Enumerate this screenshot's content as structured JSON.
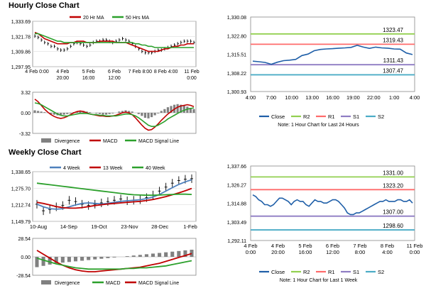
{
  "sections": {
    "hourly_title": "Hourly Close Chart",
    "weekly_title": "Weekly Close Chart"
  },
  "colors": {
    "ma_short": "#c00000",
    "ma_long": "#2ca02c",
    "ma_4": "#4f81bd",
    "close": "#1f5fa8",
    "r2": "#92d050",
    "r1": "#ff6b6b",
    "s1": "#8e7cc3",
    "s2": "#4bacc6",
    "divergence": "#808080",
    "macd": "#c00000",
    "signal": "#2ca02c"
  },
  "chart_data": [
    {
      "id": "hourly_price",
      "type": "line",
      "legend": [
        "20 Hr MA",
        "50 Hrs MA"
      ],
      "yticks": [
        "1,333.69",
        "1,321.78",
        "1,309.86",
        "1,297.95"
      ],
      "yrange": [
        1297.95,
        1333.69
      ],
      "xticks": [
        {
          "l1": "4 Feb 0:00",
          "l2": ""
        },
        {
          "l1": "4 Feb",
          "l2": "20:00"
        },
        {
          "l1": "5 Feb",
          "l2": "16:00"
        },
        {
          "l1": "6 Feb",
          "l2": "12:00"
        },
        {
          "l1": "7 Feb 8:00",
          "l2": ""
        },
        {
          "l1": "8 Feb 4:00",
          "l2": ""
        },
        {
          "l1": "11 Feb",
          "l2": "0:00"
        }
      ],
      "bars": [
        1322,
        1321,
        1319,
        1317,
        1316,
        1314,
        1314,
        1312,
        1311,
        1311,
        1312,
        1314,
        1316,
        1317,
        1316,
        1315,
        1314,
        1315,
        1317,
        1318,
        1318,
        1319,
        1319,
        1318,
        1317,
        1318,
        1319,
        1320,
        1319,
        1318,
        1316,
        1314,
        1312,
        1310,
        1309,
        1309,
        1309,
        1310,
        1311,
        1311,
        1312,
        1313,
        1314,
        1315,
        1316,
        1317,
        1318,
        1318,
        1318,
        1317
      ],
      "ma20": [
        1325,
        1324,
        1322,
        1320,
        1319,
        1318,
        1317,
        1316,
        1316,
        1316,
        1316,
        1317,
        1317,
        1318,
        1318,
        1318,
        1317,
        1317,
        1317,
        1317,
        1318,
        1318,
        1318,
        1318,
        1318,
        1317,
        1317,
        1317,
        1317,
        1316,
        1315,
        1314,
        1313,
        1312,
        1311,
        1310,
        1310,
        1310,
        1310,
        1311,
        1312,
        1312,
        1313,
        1314,
        1314,
        1315,
        1315,
        1316,
        1316,
        1316
      ],
      "ma50": [
        1324,
        1324,
        1323,
        1322,
        1321,
        1320,
        1319,
        1318,
        1318,
        1317,
        1317,
        1317,
        1317,
        1317,
        1317,
        1317,
        1317,
        1317,
        1317,
        1317,
        1317,
        1317,
        1317,
        1317,
        1317,
        1317,
        1317,
        1317,
        1317,
        1317,
        1317,
        1316,
        1316,
        1315,
        1315,
        1314,
        1314,
        1313,
        1313,
        1313,
        1313,
        1313,
        1313,
        1313,
        1313,
        1313,
        1313,
        1313,
        1313,
        1313
      ]
    },
    {
      "id": "hourly_macd",
      "type": "bar",
      "legend": [
        "Divergence",
        "MACD",
        "MACD Signal Line"
      ],
      "yticks": [
        "3.32",
        "0.00",
        "-3.32"
      ],
      "yrange": [
        -3.32,
        3.32
      ],
      "divergence": [
        0.4,
        0.3,
        0.2,
        0.1,
        0.0,
        -0.2,
        -0.3,
        -0.4,
        -0.4,
        -0.3,
        -0.2,
        -0.1,
        0.1,
        0.2,
        0.3,
        0.3,
        0.2,
        0.1,
        0.0,
        -0.1,
        -0.2,
        -0.3,
        -0.3,
        -0.2,
        -0.1,
        0.0,
        0.2,
        0.3,
        0.4,
        0.3,
        0.2,
        0.0,
        -0.2,
        -0.5,
        -0.8,
        -0.9,
        -0.7,
        -0.4,
        -0.1,
        0.3,
        0.6,
        0.9,
        1.1,
        1.3,
        1.4,
        1.3,
        1.2,
        1.0,
        0.8,
        0.6
      ],
      "macd": [
        2.2,
        1.8,
        1.2,
        0.6,
        0.1,
        -0.3,
        -0.6,
        -0.8,
        -0.9,
        -0.8,
        -0.6,
        -0.3,
        0.0,
        0.2,
        0.3,
        0.2,
        0.0,
        -0.2,
        -0.3,
        -0.4,
        -0.5,
        -0.5,
        -0.6,
        -0.6,
        -0.5,
        -0.4,
        -0.2,
        0.0,
        0.1,
        0.0,
        -0.3,
        -0.8,
        -1.4,
        -2.0,
        -2.5,
        -2.8,
        -2.7,
        -2.3,
        -1.8,
        -1.2,
        -0.7,
        -0.2,
        0.2,
        0.6,
        0.9,
        1.1,
        1.2,
        1.3,
        1.2,
        1.0
      ],
      "signal": [
        1.6,
        1.5,
        1.3,
        1.0,
        0.7,
        0.4,
        0.1,
        -0.2,
        -0.4,
        -0.5,
        -0.5,
        -0.4,
        -0.3,
        -0.2,
        -0.1,
        -0.1,
        -0.1,
        -0.2,
        -0.3,
        -0.3,
        -0.4,
        -0.4,
        -0.5,
        -0.5,
        -0.5,
        -0.5,
        -0.4,
        -0.3,
        -0.2,
        -0.2,
        -0.3,
        -0.5,
        -0.8,
        -1.2,
        -1.6,
        -2.0,
        -2.2,
        -2.2,
        -2.0,
        -1.7,
        -1.4,
        -1.0,
        -0.7,
        -0.4,
        -0.1,
        0.2,
        0.4,
        0.6,
        0.7,
        0.8
      ]
    },
    {
      "id": "hourly_pivot",
      "type": "line",
      "yticks": [
        "1,330.08",
        "1,322.80",
        "1,315.51",
        "1,308.22",
        "1,300.93"
      ],
      "yrange": [
        1300.93,
        1330.08
      ],
      "xticks": [
        "4:00",
        "7:00",
        "10:00",
        "13:00",
        "16:00",
        "19:00",
        "22:00",
        "1:00",
        "4:00"
      ],
      "close": [
        1312.8,
        1312.6,
        1312.3,
        1311.6,
        1312.4,
        1313.0,
        1313.2,
        1313.5,
        1315.0,
        1315.6,
        1316.9,
        1317.4,
        1317.6,
        1317.7,
        1317.9,
        1318.0,
        1318.2,
        1319.0,
        1318.3,
        1317.8,
        1318.3,
        1318.0,
        1317.9,
        1317.6,
        1317.5,
        1316.0,
        1315.4
      ],
      "levels": [
        {
          "key": "r2",
          "value": 1323.47,
          "label": "1323.47"
        },
        {
          "key": "r1",
          "value": 1319.43,
          "label": "1319.43"
        },
        {
          "key": "s1",
          "value": 1311.43,
          "label": "1311.43"
        },
        {
          "key": "s2",
          "value": 1307.47,
          "label": "1307.47"
        }
      ],
      "legend": [
        "Close",
        "R2",
        "R1",
        "S1",
        "S2"
      ],
      "note": "Note: 1 Hour Chart for Last 24 Hours"
    },
    {
      "id": "weekly_price",
      "type": "line",
      "legend": [
        "4 Week",
        "13 Week",
        "40 Week"
      ],
      "yticks": [
        "1,338.65",
        "1,275.70",
        "1,212.74",
        "1,149.79"
      ],
      "yrange": [
        1149.79,
        1338.65
      ],
      "xticks": [
        "10-Aug",
        "14-Sep",
        "19-Oct",
        "23-Nov",
        "28-Dec",
        "1-Feb"
      ],
      "candles": [
        1215,
        1190,
        1195,
        1205,
        1210,
        1230,
        1225,
        1215,
        1210,
        1215,
        1220,
        1225,
        1230,
        1235,
        1228,
        1230,
        1232,
        1240,
        1250,
        1265,
        1280,
        1295,
        1305,
        1310,
        1312
      ],
      "ma4": [
        1215,
        1205,
        1198,
        1196,
        1198,
        1205,
        1212,
        1218,
        1220,
        1218,
        1216,
        1218,
        1222,
        1226,
        1228,
        1230,
        1232,
        1236,
        1242,
        1252,
        1265,
        1278,
        1290,
        1300,
        1308
      ],
      "ma13": [
        1222,
        1218,
        1212,
        1206,
        1202,
        1200,
        1200,
        1202,
        1206,
        1210,
        1213,
        1216,
        1218,
        1220,
        1222,
        1224,
        1226,
        1229,
        1233,
        1238,
        1244,
        1251,
        1258,
        1266,
        1275
      ],
      "ma40": [
        1295,
        1292,
        1289,
        1286,
        1283,
        1280,
        1277,
        1274,
        1271,
        1268,
        1265,
        1262,
        1259,
        1256,
        1253,
        1251,
        1250,
        1249,
        1249,
        1250,
        1251,
        1252,
        1253,
        1253,
        1252
      ]
    },
    {
      "id": "weekly_macd",
      "type": "bar",
      "legend": [
        "Divergence",
        "MACD",
        "MACD Signal Line"
      ],
      "yticks": [
        "28.54",
        "0.00",
        "-28.54"
      ],
      "yrange": [
        -28.54,
        28.54
      ],
      "divergence": [
        -16,
        -14,
        -12,
        -10,
        -9,
        -8,
        -7,
        -6,
        -5,
        -4,
        -3,
        -2,
        -1,
        0,
        1,
        2,
        3,
        4,
        5,
        6,
        7,
        8,
        9,
        10,
        11
      ],
      "macd": [
        10,
        4,
        -2,
        -8,
        -13,
        -17,
        -20,
        -22,
        -23,
        -23,
        -22,
        -21,
        -20,
        -19,
        -18,
        -17,
        -16,
        -14,
        -12,
        -10,
        -7,
        -4,
        -1,
        2,
        5
      ],
      "signal": [
        -2,
        -5,
        -8,
        -11,
        -13,
        -15,
        -17,
        -18,
        -19,
        -19,
        -19,
        -19,
        -19,
        -19,
        -18,
        -18,
        -17,
        -17,
        -16,
        -15,
        -14,
        -12,
        -10,
        -8,
        -6
      ]
    },
    {
      "id": "weekly_pivot",
      "type": "line",
      "yticks": [
        "1,337.66",
        "1,326.27",
        "1,314.88",
        "1,303.49",
        "1,292.11"
      ],
      "yrange": [
        1292.11,
        1337.66
      ],
      "xticks": [
        {
          "l1": "4 Feb",
          "l2": "0:00"
        },
        {
          "l1": "4 Feb",
          "l2": "20:00"
        },
        {
          "l1": "5 Feb",
          "l2": "16:00"
        },
        {
          "l1": "6 Feb",
          "l2": "12:00"
        },
        {
          "l1": "7 Feb",
          "l2": "8:00"
        },
        {
          "l1": "8 Feb",
          "l2": "4:00"
        },
        {
          "l1": "11 Feb",
          "l2": "0:00"
        }
      ],
      "close": [
        1320,
        1319,
        1317,
        1316,
        1314,
        1314,
        1313,
        1314,
        1316,
        1318,
        1318,
        1317,
        1316,
        1314,
        1316,
        1317,
        1316,
        1316,
        1314,
        1313,
        1315,
        1317,
        1316,
        1316,
        1315,
        1315,
        1316,
        1317,
        1317,
        1316,
        1314,
        1312,
        1309,
        1308,
        1308,
        1309,
        1309,
        1310,
        1311,
        1312,
        1313,
        1314,
        1315,
        1316,
        1316,
        1317,
        1316,
        1316,
        1316,
        1317,
        1317,
        1316,
        1316,
        1317,
        1315
      ],
      "levels": [
        {
          "key": "r2",
          "value": 1331.0,
          "label": "1331.00"
        },
        {
          "key": "r1",
          "value": 1323.2,
          "label": "1323.20"
        },
        {
          "key": "s1",
          "value": 1307.0,
          "label": "1307.00"
        },
        {
          "key": "s2",
          "value": 1298.6,
          "label": "1298.60"
        }
      ],
      "legend": [
        "Close",
        "R2",
        "R1",
        "S1",
        "S2"
      ],
      "note": "Note: 1 Hour Chart for Last 1 Week"
    }
  ]
}
